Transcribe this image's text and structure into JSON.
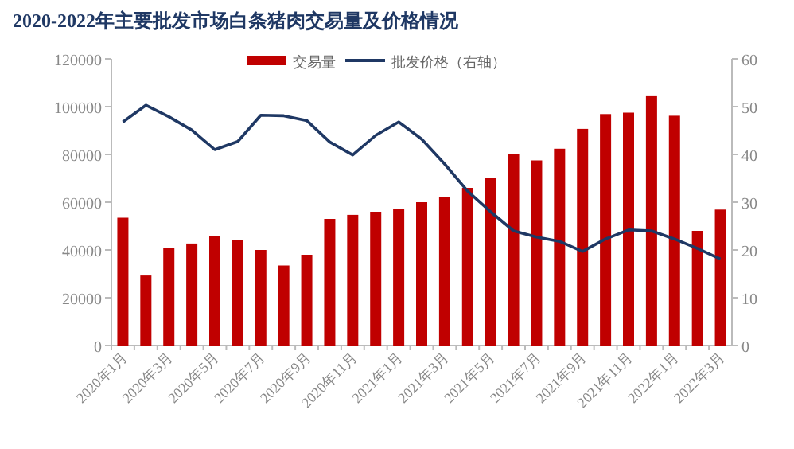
{
  "chart_data": {
    "type": "bar",
    "title": "2020-2022年主要批发市场白条猪肉交易量及价格情况",
    "categories": [
      "2020年1月",
      null,
      "2020年3月",
      null,
      "2020年5月",
      null,
      "2020年7月",
      null,
      "2020年9月",
      null,
      "2020年11月",
      null,
      "2021年1月",
      null,
      "2021年3月",
      null,
      "2021年5月",
      null,
      "2021年7月",
      null,
      "2021年9月",
      null,
      "2021年11月",
      null,
      "2022年1月",
      null,
      "2022年3月"
    ],
    "series": [
      {
        "name": "交易量",
        "color": "#c00000",
        "values": [
          53500,
          29300,
          40700,
          42700,
          46000,
          44000,
          40000,
          33500,
          38000,
          53000,
          54700,
          56000,
          57000,
          60000,
          62000,
          66000,
          70000,
          80200,
          77500,
          82400,
          90700,
          96900,
          97500,
          104700,
          96200,
          48000,
          56900
        ]
      },
      {
        "name": "批发价格（右轴）",
        "type": "line",
        "axis": "y2",
        "color": "#1f3864",
        "values": [
          46.8,
          50.3,
          47.9,
          45.1,
          41,
          42.7,
          48.2,
          48.1,
          47.1,
          42.6,
          39.9,
          44,
          46.8,
          43.2,
          38,
          32.3,
          28,
          24,
          22.7,
          21.8,
          19.7,
          22.3,
          24.2,
          24,
          22.3,
          20.3,
          18.1
        ]
      }
    ],
    "ylim": [
      0,
      120000
    ],
    "yticks": [
      0,
      20000,
      40000,
      60000,
      80000,
      100000,
      120000
    ],
    "y2lim": [
      0,
      60
    ],
    "y2ticks": [
      0,
      10,
      20,
      30,
      40,
      50,
      60
    ],
    "legend": "top",
    "grid": false
  }
}
